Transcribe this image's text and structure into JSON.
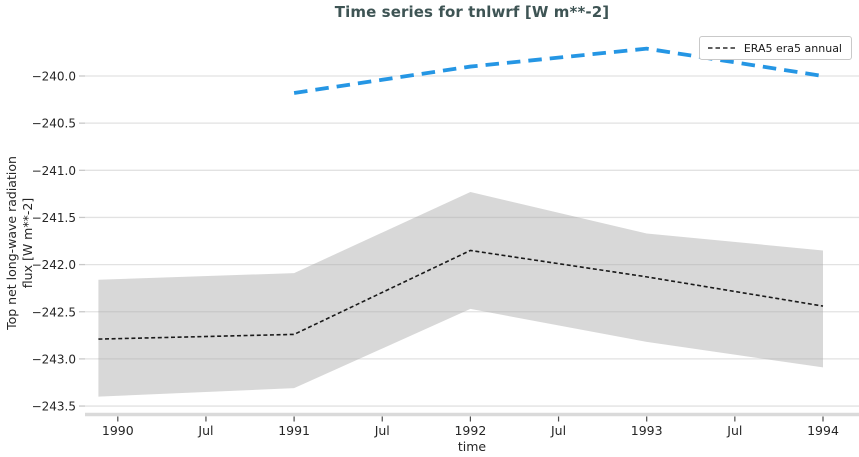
{
  "title": "Time series for tnlwrf [W m**-2]",
  "legend": {
    "label": "ERA5 era5 annual"
  },
  "axes": {
    "x_label": "time",
    "y_label_line1": "Top net long-wave radiation",
    "y_label_line2": "flux [W m**-2]"
  },
  "colors": {
    "title_text": "#3e5454",
    "tick_text": "#262626",
    "gridline": "#e2e2e2",
    "bottom_spine": "#dadada",
    "x_tick_mark": "#4d4d4d",
    "y_tick_mark": "#c8c8c8",
    "band_fill": "rgba(168,168,168,0.45)",
    "era5_line": "#1a1a1a",
    "annual_line": "#2596e4",
    "legend_border": "#c9c9c9"
  },
  "chart_data": {
    "type": "line",
    "title": "Time series for tnlwrf [W m**-2]",
    "xlabel": "time",
    "ylabel": "Top net long-wave radiation flux [W m**-2]",
    "grid": true,
    "legend_position": "top-right",
    "xlim": [
      1989.81,
      1994.21
    ],
    "ylim": [
      -243.59,
      -239.49
    ],
    "x_ticks": [
      {
        "label": "1990",
        "t": 1990.0
      },
      {
        "label": "Jul",
        "t": 1990.5
      },
      {
        "label": "1991",
        "t": 1991.0
      },
      {
        "label": "Jul",
        "t": 1991.5
      },
      {
        "label": "1992",
        "t": 1992.0
      },
      {
        "label": "Jul",
        "t": 1992.5
      },
      {
        "label": "1993",
        "t": 1993.0
      },
      {
        "label": "Jul",
        "t": 1993.5
      },
      {
        "label": "1994",
        "t": 1994.0
      }
    ],
    "y_ticks": [
      {
        "label": "−240.0",
        "v": -240.0
      },
      {
        "label": "−240.5",
        "v": -240.5
      },
      {
        "label": "−241.0",
        "v": -241.0
      },
      {
        "label": "−241.5",
        "v": -241.5
      },
      {
        "label": "−242.0",
        "v": -242.0
      },
      {
        "label": "−242.5",
        "v": -242.5
      },
      {
        "label": "−243.0",
        "v": -243.0
      },
      {
        "label": "−243.5",
        "v": -243.5
      }
    ],
    "series": [
      {
        "name": "ERA5 era5 annual",
        "in_legend": true,
        "style": "thin-black-dashed-with-band",
        "x": [
          1989.89,
          1991.0,
          1992.0,
          1993.0,
          1994.0
        ],
        "y": [
          -242.79,
          -242.74,
          -241.85,
          -242.13,
          -242.44
        ],
        "band_upper": [
          -242.16,
          -242.09,
          -241.23,
          -241.67,
          -241.85
        ],
        "band_lower": [
          -243.4,
          -243.31,
          -242.47,
          -242.82,
          -243.09
        ]
      },
      {
        "name": "",
        "in_legend": false,
        "style": "thick-blue-dashed",
        "x": [
          1991.0,
          1992.0,
          1993.0,
          1994.0
        ],
        "y": [
          -240.18,
          -239.9,
          -239.71,
          -240.0
        ]
      }
    ]
  }
}
